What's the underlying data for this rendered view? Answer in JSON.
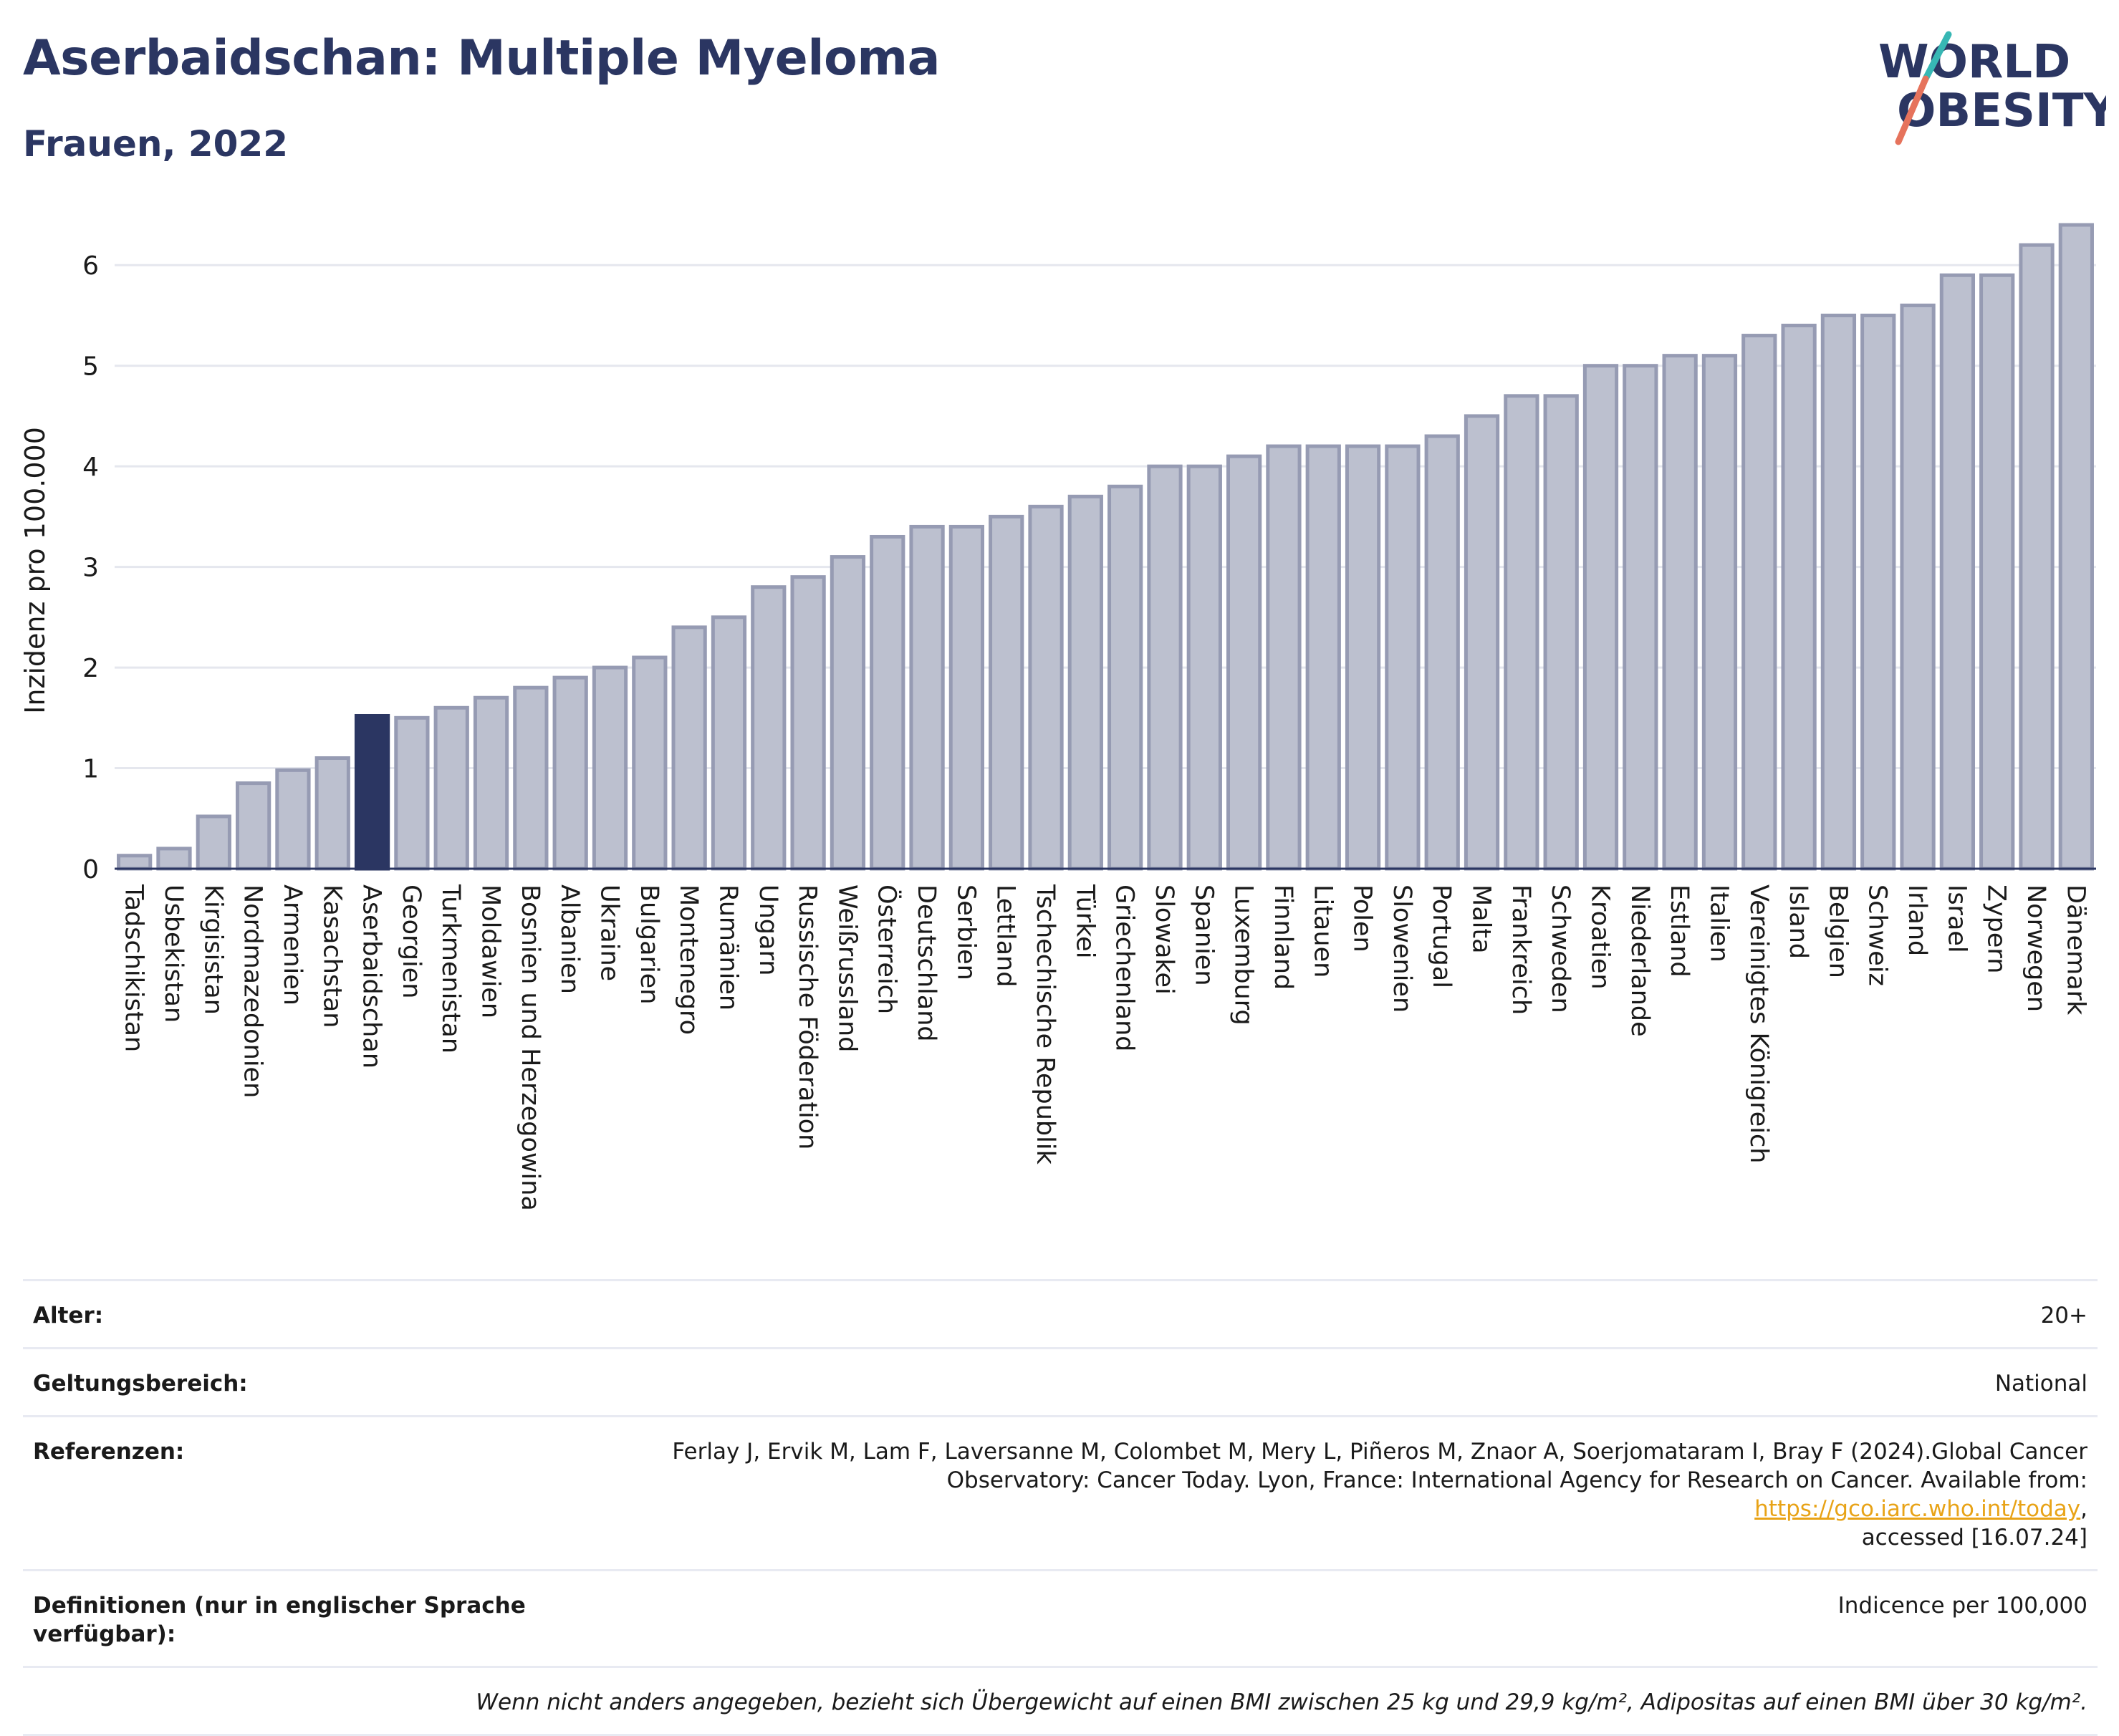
{
  "header": {
    "title": "Aserbaidschan: Multiple Myeloma",
    "subtitle": "Frauen, 2022"
  },
  "logo": {
    "line1": "WORLD",
    "line2": "OBESITY"
  },
  "colors": {
    "bar": "#bcc0cf",
    "bar_stroke": "#969bb3",
    "highlight": "#2b3662",
    "grid": "#e5e7ee",
    "axis": "#2b3662"
  },
  "chart_data": {
    "type": "bar",
    "ylabel": "Inzidenz pro 100.000",
    "ylim": [
      0,
      6.5
    ],
    "yticks": [
      0,
      1,
      2,
      3,
      4,
      5,
      6
    ],
    "grid": true,
    "highlight": "Aserbaidschan",
    "categories": [
      "Tadschikistan",
      "Usbekistan",
      "Kirgisistan",
      "Nordmazedonien",
      "Armenien",
      "Kasachstan",
      "Aserbaidschan",
      "Georgien",
      "Turkmenistan",
      "Moldawien",
      "Bosnien und Herzegowina",
      "Albanien",
      "Ukraine",
      "Bulgarien",
      "Montenegro",
      "Rumänien",
      "Ungarn",
      "Russische Föderation",
      "Weißrussland",
      "Österreich",
      "Deutschland",
      "Serbien",
      "Lettland",
      "Tschechische Republik",
      "Türkei",
      "Griechenland",
      "Slowakei",
      "Spanien",
      "Luxemburg",
      "Finnland",
      "Litauen",
      "Polen",
      "Slowenien",
      "Portugal",
      "Malta",
      "Frankreich",
      "Schweden",
      "Kroatien",
      "Niederlande",
      "Estland",
      "Italien",
      "Vereinigtes Königreich",
      "Island",
      "Belgien",
      "Schweiz",
      "Irland",
      "Israel",
      "Zypern",
      "Norwegen",
      "Dänemark"
    ],
    "values": [
      0.13,
      0.2,
      0.52,
      0.85,
      0.98,
      1.1,
      1.52,
      1.5,
      1.6,
      1.7,
      1.8,
      1.9,
      2.0,
      2.1,
      2.4,
      2.5,
      2.8,
      2.9,
      3.1,
      3.3,
      3.4,
      3.4,
      3.5,
      3.6,
      3.7,
      3.8,
      4.0,
      4.0,
      4.1,
      4.2,
      4.2,
      4.2,
      4.2,
      4.3,
      4.5,
      4.7,
      4.7,
      5.0,
      5.0,
      5.1,
      5.1,
      5.3,
      5.4,
      5.5,
      5.5,
      5.6,
      5.9,
      5.9,
      6.2,
      6.4
    ]
  },
  "meta": {
    "age_label": "Alter:",
    "age_value": "20+",
    "scope_label": "Geltungsbereich:",
    "scope_value": "National",
    "refs_label": "Referenzen:",
    "refs_text_1": "Ferlay J, Ervik M, Lam F, Laversanne M, Colombet M, Mery L, Piñeros M, Znaor A, Soerjomataram I, Bray F (2024).Global Cancer",
    "refs_text_2": "Observatory: Cancer Today. Lyon, France: International Agency for Research on Cancer. Available from: ",
    "refs_link": "https://gco.iarc.who.int/today",
    "refs_text_3": ",",
    "refs_text_4": "accessed [16.07.24]",
    "defs_label": "Definitionen (nur in englischer Sprache verfügbar):",
    "defs_value": "Indicence per 100,000",
    "note": "Wenn nicht anders angegeben, bezieht sich Übergewicht auf einen BMI zwischen 25 kg und 29,9 kg/m², Adipositas auf einen BMI über 30 kg/m²."
  }
}
